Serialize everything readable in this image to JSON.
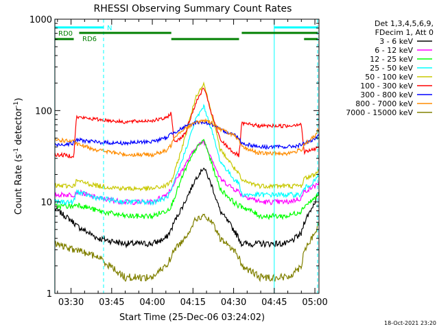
{
  "chart_data": {
    "type": "line",
    "title": "RHESSI Observing Summary Count Rates",
    "xlabel": "Start Time (25-Dec-06 03:24:02)",
    "ylabel_main": "Count Rate (s",
    "ylabel_sup1": "-1",
    "ylabel_mid": " detector",
    "ylabel_sup2": "-1",
    "ylabel_end": ")",
    "y_scale": "log",
    "xlim": [
      "03:24:02",
      "05:01:30"
    ],
    "ylim": [
      1,
      1000
    ],
    "x_ticks": [
      "03:30",
      "03:45",
      "04:00",
      "04:15",
      "04:30",
      "04:45",
      "05:00"
    ],
    "y_ticks": [
      {
        "value": 1,
        "label": "1"
      },
      {
        "value": 10,
        "label": "10"
      },
      {
        "value": 100,
        "label": "100"
      },
      {
        "value": 1000,
        "label": "1000"
      }
    ],
    "legend_position": "right",
    "legend_header": [
      "Det 1,3,4,5,6,9,",
      "FDecim 1, Att 0"
    ],
    "timestamp": "18-Oct-2021 23:20",
    "state_bars": [
      {
        "label": "N",
        "color": "#00ffff",
        "segments": [
          [
            "03:24",
            "03:42"
          ],
          [
            "04:45",
            "05:01"
          ]
        ]
      },
      {
        "label": "RD0",
        "color": "#008000",
        "segments": [
          [
            "03:33",
            "04:07"
          ],
          [
            "04:33",
            "05:01"
          ]
        ]
      },
      {
        "label": "RD6",
        "color": "#008000",
        "segments": [
          [
            "03:24",
            "03:31"
          ],
          [
            "04:07",
            "04:32"
          ],
          [
            "04:56",
            "05:01"
          ]
        ]
      }
    ],
    "vlines": [
      {
        "time": "03:24",
        "style": "solid"
      },
      {
        "time": "03:42",
        "style": "dashed"
      },
      {
        "time": "04:45",
        "style": "solid"
      },
      {
        "time": "05:01",
        "style": "dashed"
      }
    ],
    "x": [
      "03:24",
      "03:31",
      "03:32",
      "03:40",
      "03:50",
      "04:00",
      "04:05",
      "04:07",
      "04:08",
      "04:12",
      "04:16",
      "04:19",
      "04:22",
      "04:25",
      "04:30",
      "04:32",
      "04:33",
      "04:40",
      "04:50",
      "04:55",
      "04:56",
      "05:00",
      "05:01"
    ],
    "series": [
      {
        "name": "3 - 6 keV",
        "color": "#000000",
        "values": [
          8.5,
          6,
          5.5,
          4,
          3.5,
          3.5,
          4,
          5,
          6,
          10,
          18,
          24,
          15,
          8,
          5,
          4,
          3.5,
          3.5,
          3.5,
          4.5,
          6,
          10,
          12
        ]
      },
      {
        "name": "6 - 12 keV",
        "color": "#ff00ff",
        "values": [
          12,
          12,
          13,
          11,
          10,
          10,
          12,
          14,
          16,
          25,
          40,
          46,
          30,
          18,
          14,
          13,
          12,
          10,
          10,
          11,
          13,
          15,
          16
        ]
      },
      {
        "name": "12 - 25 keV",
        "color": "#00ff00",
        "values": [
          9,
          9,
          9.5,
          8,
          7,
          7,
          8,
          9,
          11,
          22,
          38,
          48,
          26,
          14,
          10,
          9,
          9,
          7,
          7,
          8,
          9,
          11,
          12
        ]
      },
      {
        "name": "25 - 50 keV",
        "color": "#00ffff",
        "values": [
          10,
          10,
          13,
          11,
          10,
          10,
          11,
          13,
          16,
          35,
          80,
          112,
          60,
          28,
          18,
          16,
          12,
          12,
          12,
          12,
          14,
          17,
          19
        ]
      },
      {
        "name": "50 - 100 keV",
        "color": "#c8c800",
        "values": [
          15,
          15,
          17,
          15,
          14,
          14,
          15,
          17,
          20,
          50,
          140,
          200,
          90,
          38,
          24,
          20,
          17,
          15,
          15,
          15,
          18,
          20,
          22
        ]
      },
      {
        "name": "100 - 300 keV",
        "color": "#ff0000",
        "values": [
          33,
          32,
          85,
          80,
          75,
          78,
          82,
          95,
          45,
          55,
          120,
          180,
          90,
          48,
          35,
          32,
          72,
          68,
          68,
          72,
          35,
          38,
          40
        ]
      },
      {
        "name": "300 - 800 keV",
        "color": "#0000ff",
        "values": [
          42,
          44,
          48,
          45,
          44,
          46,
          50,
          56,
          58,
          66,
          74,
          75,
          70,
          62,
          55,
          50,
          44,
          40,
          40,
          42,
          44,
          48,
          52
        ]
      },
      {
        "name": "800 - 7000 keV",
        "color": "#ff8c00",
        "values": [
          48,
          46,
          43,
          37,
          33,
          33,
          36,
          42,
          52,
          64,
          74,
          78,
          74,
          63,
          54,
          46,
          40,
          34,
          34,
          37,
          43,
          52,
          60
        ]
      },
      {
        "name": "7000 - 15000 keV",
        "color": "#808000",
        "values": [
          3.5,
          3,
          3,
          2.5,
          1.5,
          1.5,
          2,
          2.5,
          3,
          4,
          6.5,
          7,
          6,
          4,
          3,
          2.5,
          2,
          1.5,
          1.5,
          2,
          3,
          4.5,
          5.5
        ]
      }
    ]
  }
}
